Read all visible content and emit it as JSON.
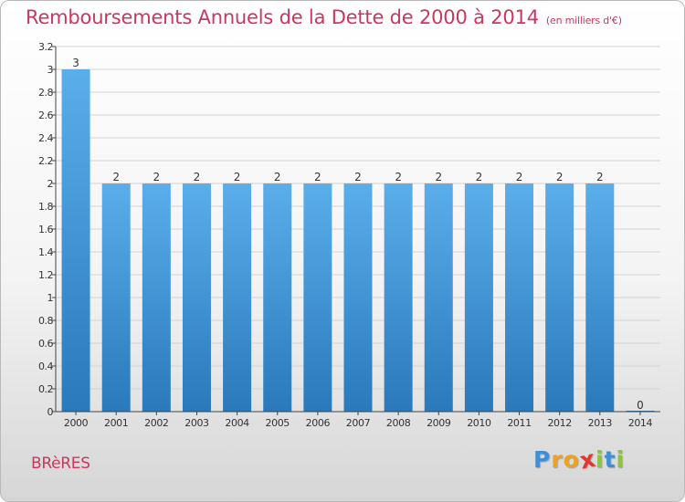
{
  "chart_data": {
    "type": "bar",
    "title": "Remboursements Annuels de la Dette de 2000 à 2014",
    "subtitle": "(en milliers d'€)",
    "categories": [
      "2000",
      "2001",
      "2002",
      "2003",
      "2004",
      "2005",
      "2006",
      "2007",
      "2008",
      "2009",
      "2010",
      "2011",
      "2012",
      "2013",
      "2014"
    ],
    "values": [
      3.0,
      2.0,
      2.0,
      2.0,
      2.0,
      2.0,
      2.0,
      2.0,
      2.0,
      2.0,
      2.0,
      2.0,
      2.0,
      2.0,
      0.0
    ],
    "data_labels": [
      "3",
      "2",
      "2",
      "2",
      "2",
      "2",
      "2",
      "2",
      "2",
      "2",
      "2",
      "2",
      "2",
      "2",
      "0"
    ],
    "y_ticks": [
      "0",
      "0.2",
      "0.4",
      "0.6",
      "0.8",
      "1",
      "1.2",
      "1.4",
      "1.6",
      "1.8",
      "2",
      "2.2",
      "2.4",
      "2.6",
      "2.8",
      "3",
      "3.2"
    ],
    "ylim": [
      0,
      3.2
    ],
    "grid": true,
    "colors": {
      "bar_top": "#5aaeea",
      "bar_bottom": "#2a79bb",
      "grid": "#d3d3d3",
      "title": "#c8385f"
    }
  },
  "commune": "BRèRES",
  "logo": {
    "letters": [
      "P",
      "r",
      "o",
      "x",
      "i",
      "t",
      "i"
    ],
    "colors": [
      "#3d8fd6",
      "#f0a21f",
      "#f0a21f",
      "#e2372c",
      "#8cc43c",
      "#3d8fd6",
      "#8cc43c"
    ]
  }
}
